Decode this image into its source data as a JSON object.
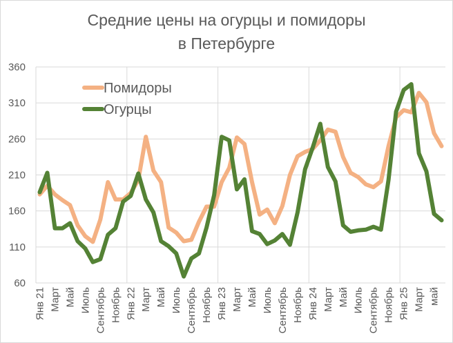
{
  "chart_data": {
    "type": "line",
    "title": [
      "Средние цены на огурцы и помидоры",
      "в Петербурге"
    ],
    "xlabel": "",
    "ylabel": "",
    "ylim": [
      60,
      360
    ],
    "yticks": [
      60,
      110,
      160,
      210,
      260,
      310,
      360
    ],
    "grid": true,
    "legend": "top-left",
    "x_tick_labels": [
      "Янв 21",
      "Март",
      "Май",
      "Июль",
      "Сентябрь",
      "Ноябрь",
      "Янв 22",
      "Март",
      "Май",
      "Июль",
      "Сентябрь",
      "Ноябрь",
      "Янв 23",
      "Март",
      "Май",
      "Июль",
      "Сентябрь",
      "Ноябрь",
      "Янв 24",
      "Март",
      "Май",
      "Июль",
      "Сентябрь",
      "Ноябрь",
      "Янв 25",
      "Март",
      "май"
    ],
    "series": [
      {
        "name": "Помидоры",
        "color": "#F4B183",
        "values": [
          183,
          195,
          183,
          175,
          168,
          140,
          125,
          117,
          148,
          200,
          176,
          176,
          185,
          203,
          263,
          216,
          200,
          137,
          130,
          118,
          120,
          145,
          166,
          166,
          200,
          220,
          262,
          253,
          200,
          155,
          162,
          143,
          167,
          210,
          236,
          242,
          246,
          258,
          273,
          270,
          235,
          213,
          207,
          197,
          193,
          201,
          250,
          290,
          300,
          297,
          324,
          311,
          268,
          250
        ]
      },
      {
        "name": "Огурцы",
        "color": "#548235",
        "values": [
          186,
          213,
          136,
          136,
          143,
          118,
          108,
          89,
          93,
          127,
          136,
          173,
          181,
          212,
          176,
          158,
          118,
          111,
          101,
          69,
          94,
          101,
          137,
          182,
          263,
          258,
          190,
          204,
          132,
          128,
          114,
          119,
          128,
          113,
          158,
          218,
          248,
          281,
          221,
          201,
          140,
          131,
          133,
          134,
          138,
          134,
          203,
          298,
          328,
          336,
          240,
          215,
          156,
          147
        ]
      }
    ]
  }
}
